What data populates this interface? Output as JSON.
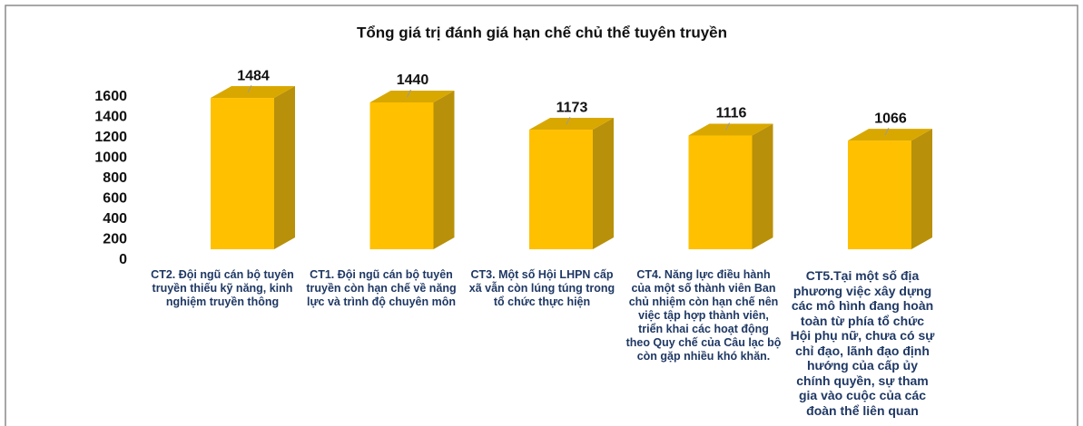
{
  "chart_data": {
    "type": "bar3d",
    "title": "Tổng giá trị đánh giá hạn chế chủ thể tuyên truyền",
    "categories": [
      "CT2. Đội ngũ cán bộ tuyên truyền thiếu kỹ năng, kinh nghiệm truyền thông",
      "CT1. Đội ngũ cán bộ tuyên truyền còn hạn chế về năng lực và trình độ chuyên môn",
      "CT3. Một số Hội LHPN cấp xã vẫn còn lúng túng trong tổ chức thực hiện",
      "CT4. Năng lực điều hành của một số thành viên Ban chủ nhiệm còn hạn chế nên việc tập hợp thành viên, triển khai các hoạt động theo Quy chế của Câu lạc bộ còn gặp nhiều khó khăn.",
      "CT5.Tại một số địa phương việc xây dựng các mô hình đang hoàn toàn từ phía tổ chức Hội phụ nữ, chưa có sự chỉ đạo, lãnh đạo định hướng của cấp ủy chính quyền, sự tham gia vào cuộc của các đoàn thể liên quan"
    ],
    "values": [
      1484,
      1440,
      1173,
      1116,
      1066
    ],
    "color": "#FFC000",
    "ylim": [
      0,
      1600
    ],
    "yticks": [
      0,
      200,
      400,
      600,
      800,
      1000,
      1200,
      1400,
      1600
    ],
    "grid": false
  }
}
